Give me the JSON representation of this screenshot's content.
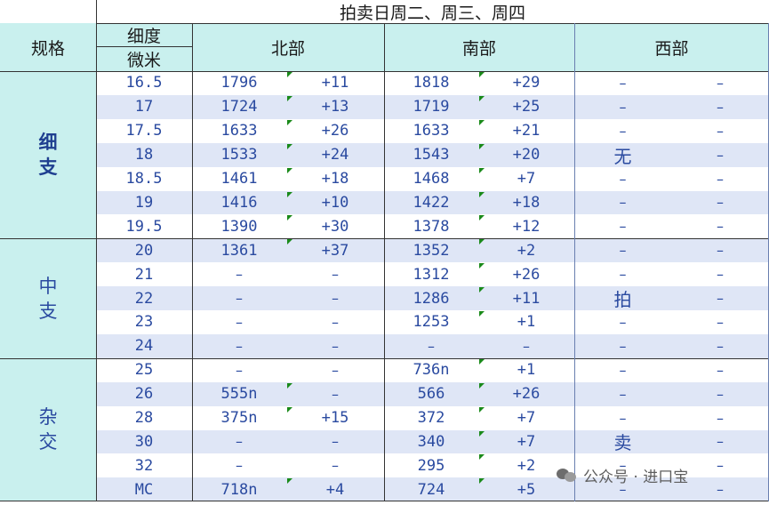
{
  "title": "拍卖日周二、周三、周四",
  "headers": {
    "spec": "规格",
    "fineness_top": "细度",
    "fineness_bottom": "微米",
    "north": "北部",
    "south": "南部",
    "west": "西部"
  },
  "categories": [
    {
      "label": [
        "细",
        "支"
      ],
      "rows": 7,
      "bold": true
    },
    {
      "label": [
        "中",
        "支"
      ],
      "rows": 5,
      "bold": false
    },
    {
      "label": [
        "杂",
        "交"
      ],
      "rows": 6,
      "bold": false
    }
  ],
  "rows": [
    {
      "micron": "16.5",
      "north": "1796",
      "north_chg": "+11",
      "south": "1818",
      "south_chg": "+29",
      "west": "–",
      "west_chg": "–"
    },
    {
      "micron": "17",
      "north": "1724",
      "north_chg": "+13",
      "south": "1719",
      "south_chg": "+25",
      "west": "–",
      "west_chg": "–"
    },
    {
      "micron": "17.5",
      "north": "1633",
      "north_chg": "+26",
      "south": "1633",
      "south_chg": "+21",
      "west": "–",
      "west_chg": "–"
    },
    {
      "micron": "18",
      "north": "1533",
      "north_chg": "+24",
      "south": "1543",
      "south_chg": "+20",
      "west": "无",
      "west_chg": "–"
    },
    {
      "micron": "18.5",
      "north": "1461",
      "north_chg": "+18",
      "south": "1468",
      "south_chg": "+7",
      "west": "–",
      "west_chg": "–"
    },
    {
      "micron": "19",
      "north": "1416",
      "north_chg": "+10",
      "south": "1422",
      "south_chg": "+18",
      "west": "–",
      "west_chg": "–"
    },
    {
      "micron": "19.5",
      "north": "1390",
      "north_chg": "+30",
      "south": "1378",
      "south_chg": "+12",
      "west": "–",
      "west_chg": "–"
    },
    {
      "micron": "20",
      "north": "1361",
      "north_chg": "+37",
      "south": "1352",
      "south_chg": "+2",
      "west": "–",
      "west_chg": "–"
    },
    {
      "micron": "21",
      "north": "–",
      "north_chg": "–",
      "south": "1312",
      "south_chg": "+26",
      "west": "–",
      "west_chg": "–"
    },
    {
      "micron": "22",
      "north": "–",
      "north_chg": "–",
      "south": "1286",
      "south_chg": "+11",
      "west": "拍",
      "west_chg": "–"
    },
    {
      "micron": "23",
      "north": "–",
      "north_chg": "–",
      "south": "1253",
      "south_chg": "+1",
      "west": "–",
      "west_chg": "–"
    },
    {
      "micron": "24",
      "north": "–",
      "north_chg": "–",
      "south": "–",
      "south_chg": "–",
      "west": "–",
      "west_chg": "–"
    },
    {
      "micron": "25",
      "north": "–",
      "north_chg": "–",
      "south": "736n",
      "south_chg": "+1",
      "west": "–",
      "west_chg": "–"
    },
    {
      "micron": "26",
      "north": "555n",
      "north_chg": "–",
      "south": "566",
      "south_chg": "+26",
      "west": "–",
      "west_chg": "–"
    },
    {
      "micron": "28",
      "north": "375n",
      "north_chg": "+15",
      "south": "372",
      "south_chg": "+7",
      "west": "–",
      "west_chg": "–"
    },
    {
      "micron": "30",
      "north": "–",
      "north_chg": "–",
      "south": "340",
      "south_chg": "+7",
      "west": "卖",
      "west_chg": "–"
    },
    {
      "micron": "32",
      "north": "–",
      "north_chg": "–",
      "south": "295",
      "south_chg": "+2",
      "west": "–",
      "west_chg": "–"
    },
    {
      "micron": "MC",
      "north": "718n",
      "north_chg": "+4",
      "south": "724",
      "south_chg": "+5",
      "west": "–",
      "west_chg": "–"
    }
  ],
  "watermark": "公众号 · 进口宝"
}
